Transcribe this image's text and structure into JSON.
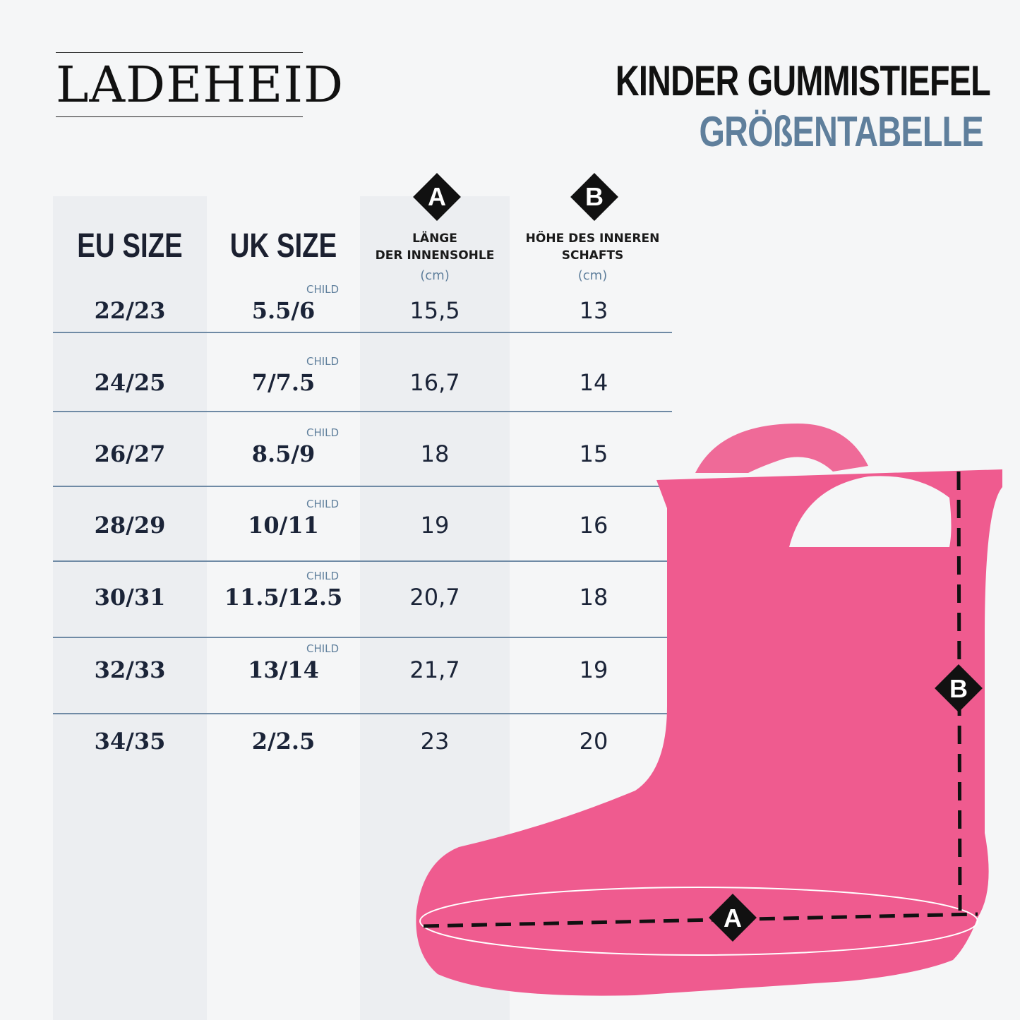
{
  "brand": "LADEHEID",
  "title": "KINDER GUMMISTIEFEL",
  "subtitle": "GRÖßENTABELLE",
  "colors": {
    "accent": "#5f7f9c",
    "boot": "#ef5b8f",
    "background": "#f5f6f7"
  },
  "headers": {
    "eu": "EU SIZE",
    "uk": "UK SIZE",
    "a_marker": "A",
    "a_label_1": "LÄNGE",
    "a_label_2": "DER INNENSOHLE",
    "a_unit": "(cm)",
    "b_marker": "B",
    "b_label_1": "HÖHE DES INNEREN",
    "b_label_2": "SCHAFTS",
    "b_unit": "(cm)"
  },
  "rows": [
    {
      "eu": "22/23",
      "uk": "5.5/6",
      "uk_note": "CHILD",
      "a": "15,5",
      "b": "13"
    },
    {
      "eu": "24/25",
      "uk": "7/7.5",
      "uk_note": "CHILD",
      "a": "16,7",
      "b": "14"
    },
    {
      "eu": "26/27",
      "uk": "8.5/9",
      "uk_note": "CHILD",
      "a": "18",
      "b": "15"
    },
    {
      "eu": "28/29",
      "uk": "10/11",
      "uk_note": "CHILD",
      "a": "19",
      "b": "16"
    },
    {
      "eu": "30/31",
      "uk": "11.5/12.5",
      "uk_note": "CHILD",
      "a": "20,7",
      "b": "18"
    },
    {
      "eu": "32/33",
      "uk": "13/14",
      "uk_note": "CHILD",
      "a": "21,7",
      "b": "19"
    },
    {
      "eu": "34/35",
      "uk": "2/2.5",
      "a": "23",
      "b": "20"
    }
  ],
  "diagram": {
    "a_marker": "A",
    "b_marker": "B"
  }
}
